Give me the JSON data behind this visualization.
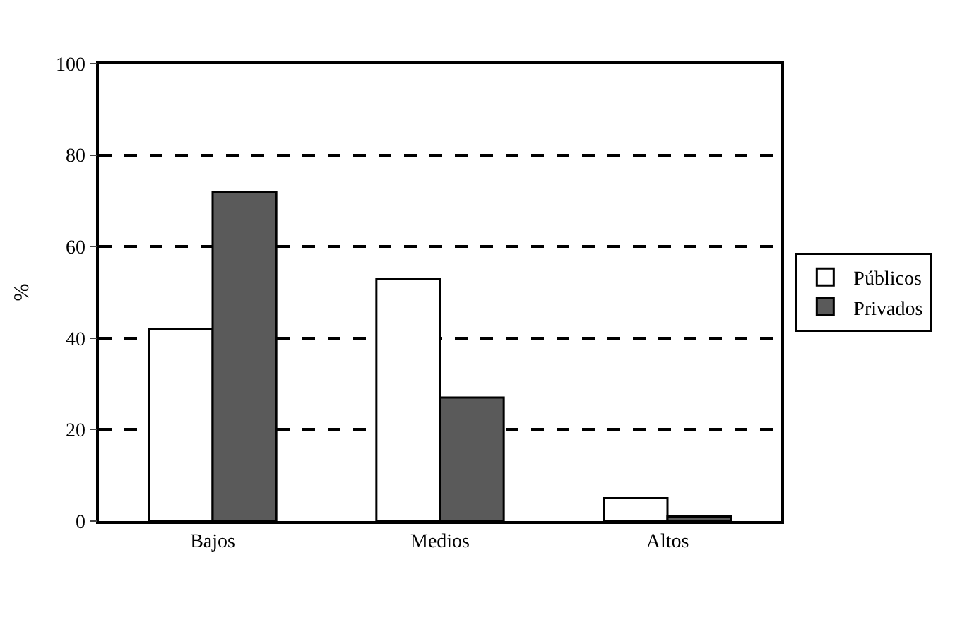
{
  "chart_data": {
    "type": "bar",
    "ylabel": "%",
    "categories": [
      "Bajos",
      "Medios",
      "Altos"
    ],
    "series": [
      {
        "name": "Públicos",
        "color": "#ffffff",
        "values": [
          42,
          53,
          5
        ]
      },
      {
        "name": "Privados",
        "color": "#5a5a5a",
        "values": [
          72,
          27,
          1
        ]
      }
    ],
    "ylim": [
      0,
      100
    ],
    "yticks": [
      0,
      20,
      40,
      60,
      80,
      100
    ],
    "grid": "y",
    "legend": "right",
    "line_style": "dashed"
  }
}
